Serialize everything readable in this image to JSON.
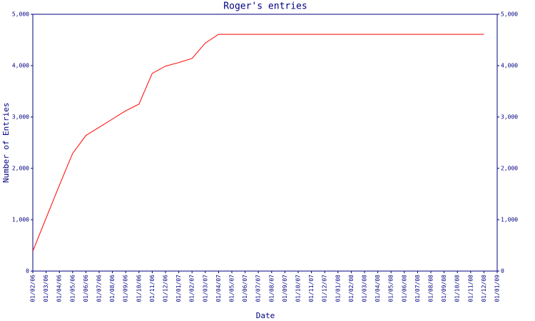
{
  "chart_data": {
    "type": "line",
    "title": "Roger's entries",
    "x_label": "Date",
    "y_label": "Number of Entries",
    "categories": [
      "01/02/06",
      "01/03/06",
      "01/04/06",
      "01/05/06",
      "01/06/06",
      "01/07/06",
      "01/08/06",
      "01/09/06",
      "01/10/06",
      "01/11/06",
      "01/12/06",
      "01/01/07",
      "01/02/07",
      "01/03/07",
      "01/04/07",
      "01/05/07",
      "01/06/07",
      "01/07/07",
      "01/08/07",
      "01/09/07",
      "01/10/07",
      "01/11/07",
      "01/12/07",
      "01/01/08",
      "01/02/08",
      "01/03/08",
      "01/04/08",
      "01/05/08",
      "01/06/08",
      "01/07/08",
      "01/08/08",
      "01/09/08",
      "01/10/08",
      "01/11/08",
      "01/12/08",
      "01/01/09"
    ],
    "series": [
      {
        "name": "Entries",
        "color": "#ff0000",
        "values": [
          390,
          1030,
          1670,
          2290,
          2640,
          2800,
          2960,
          3120,
          3250,
          3850,
          3990,
          4060,
          4140,
          4440,
          4610,
          4610,
          4610,
          4610,
          4610,
          4610,
          4610,
          4610,
          4610,
          4610,
          4610,
          4610,
          4610,
          4610,
          4610,
          4610,
          4610,
          4610,
          4610,
          4610,
          4610,
          null
        ]
      }
    ],
    "ylim": [
      0,
      5000
    ],
    "yticks": [
      0,
      {
        "value": 1000,
        "label": "1,000"
      },
      {
        "value": 2000,
        "label": "2,000"
      },
      {
        "value": 3000,
        "label": "3,000"
      },
      {
        "value": 4000,
        "label": "4,000"
      },
      {
        "value": 5000,
        "label": "5,000"
      }
    ],
    "axis_color": "#000080"
  }
}
